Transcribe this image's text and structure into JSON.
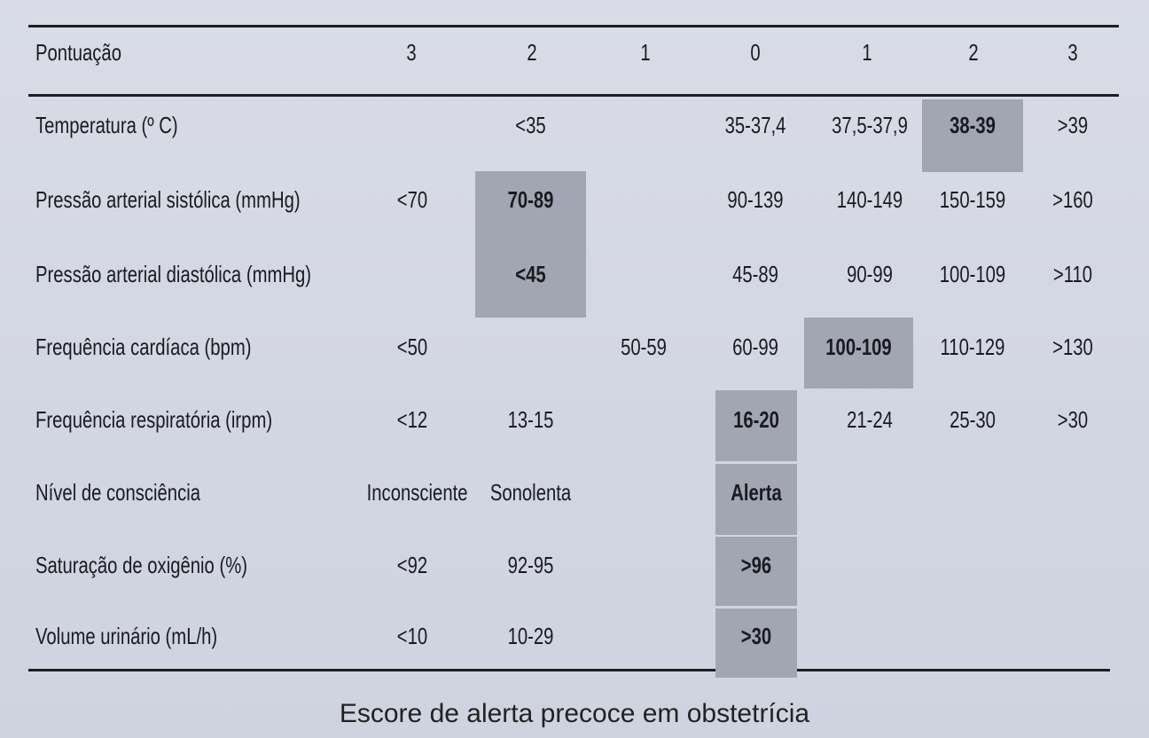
{
  "header": {
    "label": "Pontuação",
    "scores": [
      "3",
      "2",
      "1",
      "0",
      "1",
      "2",
      "3"
    ]
  },
  "rows": [
    {
      "param": "Temperatura (º C)",
      "cells": [
        "",
        "<35",
        "",
        "35-37,4",
        "37,5-37,9",
        "38-39",
        ">39"
      ]
    },
    {
      "param": "Pressão arterial sistólica (mmHg)",
      "cells": [
        "<70",
        "70-89",
        "",
        "90-139",
        "140-149",
        "150-159",
        ">160"
      ]
    },
    {
      "param": "Pressão arterial diastólica (mmHg)",
      "cells": [
        "",
        "<45",
        "",
        "45-89",
        "90-99",
        "100-109",
        ">110"
      ]
    },
    {
      "param": "Frequência cardíaca (bpm)",
      "cells": [
        "<50",
        "",
        "50-59",
        "60-99",
        "100-109",
        "110-129",
        ">130"
      ]
    },
    {
      "param": "Frequência respiratória (irpm)",
      "cells": [
        "<12",
        "13-15",
        "",
        "16-20",
        "21-24",
        "25-30",
        ">30"
      ]
    },
    {
      "param": "Nível de consciência",
      "cells": [
        "Inconsciente",
        "Sonolenta",
        "",
        "Alerta",
        "",
        "",
        ""
      ]
    },
    {
      "param": "Saturação de oxigênio (%)",
      "cells": [
        "<92",
        "92-95",
        "",
        ">96",
        "",
        "",
        ""
      ]
    },
    {
      "param": "Volume urinário (mL/h)",
      "cells": [
        "<10",
        "10-29",
        "",
        ">30",
        "",
        "",
        ""
      ]
    }
  ],
  "caption": "Escore de alerta precoce em obstetrícia",
  "colors": {
    "shade": "#a2a6b3",
    "rule": "#1d1d22",
    "paper": "#d6d9e4"
  }
}
